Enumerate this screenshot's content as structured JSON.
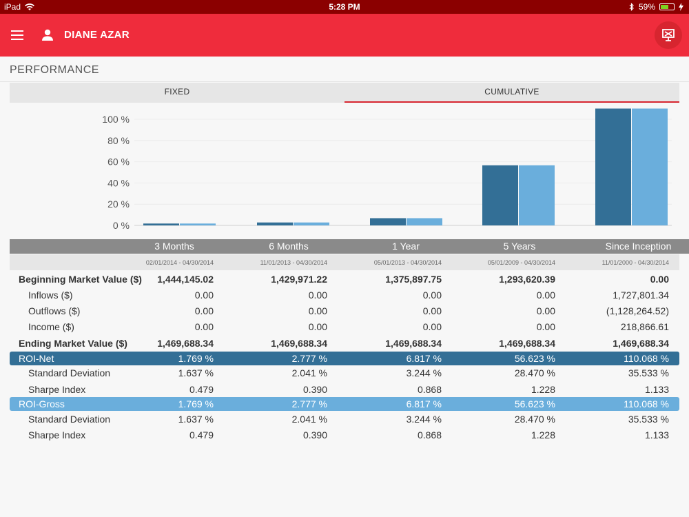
{
  "status_bar": {
    "device": "iPad",
    "time": "5:28 PM",
    "battery": "59%",
    "battery_level": 0.59
  },
  "app_bar": {
    "user_name": "DIANE AZAR"
  },
  "page": {
    "title": "PERFORMANCE"
  },
  "tabs": [
    {
      "label": "FIXED",
      "active": false
    },
    {
      "label": "CUMULATIVE",
      "active": true
    }
  ],
  "colors": {
    "net": "#336f96",
    "gross": "#6aaedc",
    "accent": "#ef2c3c"
  },
  "chart_data": {
    "type": "bar",
    "categories": [
      "3 Months",
      "6 Months",
      "1 Year",
      "5 Years",
      "Since Inception"
    ],
    "series": [
      {
        "values": [
          1.769,
          2.777,
          6.817,
          56.623,
          110.068
        ]
      },
      {
        "values": [
          1.769,
          2.777,
          6.817,
          56.623,
          110.068
        ]
      }
    ],
    "yticks": [
      "0 %",
      "20 %",
      "40 %",
      "60 %",
      "80 %",
      "100 %"
    ],
    "ylim": [
      0,
      110
    ]
  },
  "table": {
    "columns": [
      "3 Months",
      "6 Months",
      "1 Year",
      "5 Years",
      "Since Inception"
    ],
    "dates": [
      "02/01/2014 - 04/30/2014",
      "11/01/2013 - 04/30/2014",
      "05/01/2013 - 04/30/2014",
      "05/01/2009 - 04/30/2014",
      "11/01/2000 - 04/30/2014"
    ],
    "rows": [
      {
        "label": "Beginning Market Value ($)",
        "values": [
          "1,444,145.02",
          "1,429,971.22",
          "1,375,897.75",
          "1,293,620.39",
          "0.00"
        ]
      },
      {
        "label": "Inflows ($)",
        "values": [
          "0.00",
          "0.00",
          "0.00",
          "0.00",
          "1,727,801.34"
        ]
      },
      {
        "label": "Outflows ($)",
        "values": [
          "0.00",
          "0.00",
          "0.00",
          "0.00",
          "(1,128,264.52)"
        ]
      },
      {
        "label": "Income ($)",
        "values": [
          "0.00",
          "0.00",
          "0.00",
          "0.00",
          "218,866.61"
        ]
      },
      {
        "label": "Ending Market Value ($)",
        "values": [
          "1,469,688.34",
          "1,469,688.34",
          "1,469,688.34",
          "1,469,688.34",
          "1,469,688.34"
        ]
      },
      {
        "label": "ROI-Net",
        "values": [
          "1.769 %",
          "2.777 %",
          "6.817 %",
          "56.623 %",
          "110.068 %"
        ]
      },
      {
        "label": "Standard Deviation",
        "values": [
          "1.637 %",
          "2.041 %",
          "3.244 %",
          "28.470 %",
          "35.533 %"
        ]
      },
      {
        "label": "Sharpe Index",
        "values": [
          "0.479",
          "0.390",
          "0.868",
          "1.228",
          "1.133"
        ]
      },
      {
        "label": "ROI-Gross",
        "values": [
          "1.769 %",
          "2.777 %",
          "6.817 %",
          "56.623 %",
          "110.068 %"
        ]
      },
      {
        "label": "Standard Deviation",
        "values": [
          "1.637 %",
          "2.041 %",
          "3.244 %",
          "28.470 %",
          "35.533 %"
        ]
      },
      {
        "label": "Sharpe Index",
        "values": [
          "0.479",
          "0.390",
          "0.868",
          "1.228",
          "1.133"
        ]
      }
    ]
  }
}
